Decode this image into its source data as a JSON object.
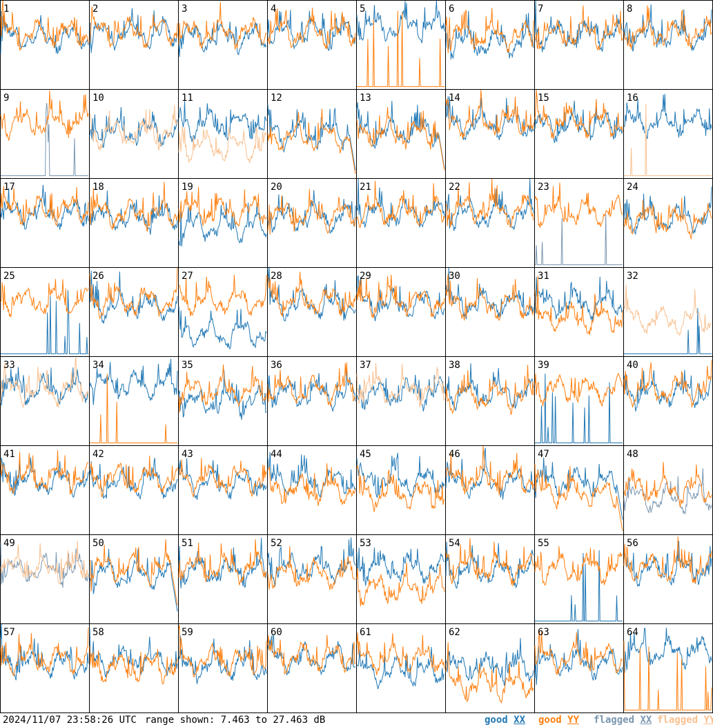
{
  "footer": {
    "timestamp": "2024/11/07 23:58:26 UTC",
    "range_text": "range shown: 7.463 to 27.463 dB"
  },
  "legend": [
    {
      "status": "good",
      "pol": "XX",
      "color": "#1f77b4"
    },
    {
      "status": "good",
      "pol": "YY",
      "color": "#ff7f0e"
    },
    {
      "status": "flagged",
      "pol": "XX",
      "color": "#7a96b0"
    },
    {
      "status": "flagged",
      "pol": "YY",
      "color": "#f9c08f"
    }
  ],
  "chart_data": {
    "type": "line",
    "title": "",
    "xlabel": "",
    "ylabel": "",
    "ylim": [
      7.463,
      27.463
    ],
    "units": "dB",
    "grid_layout": "8x8",
    "panels": [
      {
        "id": "1",
        "xx": "good",
        "yy": "good",
        "xx_level": 0.58,
        "yy_level": 0.62,
        "note": "spiky start"
      },
      {
        "id": "2",
        "xx": "good",
        "yy": "good",
        "xx_level": 0.62,
        "yy_level": 0.64
      },
      {
        "id": "3",
        "xx": "good",
        "yy": "good",
        "xx_level": 0.58,
        "yy_level": 0.63
      },
      {
        "id": "4",
        "xx": "good",
        "yy": "good",
        "xx_level": 0.62,
        "yy_level": 0.63
      },
      {
        "id": "5",
        "xx": "good",
        "yy": "good",
        "xx_level": 0.7,
        "yy_level": 0.02,
        "note": "YY near floor with spikes"
      },
      {
        "id": "6",
        "xx": "good",
        "yy": "good",
        "xx_level": 0.52,
        "yy_level": 0.6
      },
      {
        "id": "7",
        "xx": "good",
        "yy": "good",
        "xx_level": 0.6,
        "yy_level": 0.62
      },
      {
        "id": "8",
        "xx": "good",
        "yy": "good",
        "xx_level": 0.6,
        "yy_level": 0.62
      },
      {
        "id": "9",
        "xx": "flagged",
        "yy": "good",
        "xx_level": 0.02,
        "yy_level": 0.62,
        "note": "XX near floor with spikes"
      },
      {
        "id": "10",
        "xx": "good",
        "yy": "flagged",
        "xx_level": 0.52,
        "yy_level": 0.5
      },
      {
        "id": "11",
        "xx": "good",
        "yy": "flagged",
        "xx_level": 0.6,
        "yy_level": 0.35
      },
      {
        "id": "12",
        "xx": "good",
        "yy": "good",
        "xx_level": 0.5,
        "yy_level": 0.46,
        "note": "smooth middle, drop at end"
      },
      {
        "id": "13",
        "xx": "good",
        "yy": "good",
        "xx_level": 0.52,
        "yy_level": 0.5,
        "note": "smooth middle, drop at end"
      },
      {
        "id": "14",
        "xx": "good",
        "yy": "good",
        "xx_level": 0.6,
        "yy_level": 0.63
      },
      {
        "id": "15",
        "xx": "good",
        "yy": "good",
        "xx_level": 0.58,
        "yy_level": 0.62
      },
      {
        "id": "16",
        "xx": "good",
        "yy": "flagged",
        "xx_level": 0.62,
        "yy_level": 0.02,
        "note": "YY near floor with spikes"
      },
      {
        "id": "17",
        "xx": "good",
        "yy": "good",
        "xx_level": 0.6,
        "yy_level": 0.64
      },
      {
        "id": "18",
        "xx": "good",
        "yy": "good",
        "xx_level": 0.55,
        "yy_level": 0.6
      },
      {
        "id": "19",
        "xx": "good",
        "yy": "good",
        "xx_level": 0.45,
        "yy_level": 0.62
      },
      {
        "id": "20",
        "xx": "good",
        "yy": "good",
        "xx_level": 0.55,
        "yy_level": 0.58
      },
      {
        "id": "21",
        "xx": "good",
        "yy": "good",
        "xx_level": 0.6,
        "yy_level": 0.62
      },
      {
        "id": "22",
        "xx": "good",
        "yy": "good",
        "xx_level": 0.6,
        "yy_level": 0.64
      },
      {
        "id": "23",
        "xx": "flagged",
        "yy": "good",
        "xx_level": 0.04,
        "yy_level": 0.62,
        "note": "XX near floor with spikes"
      },
      {
        "id": "24",
        "xx": "good",
        "yy": "good",
        "xx_level": 0.55,
        "yy_level": 0.52
      },
      {
        "id": "25",
        "xx": "good",
        "yy": "good",
        "xx_level": 0.02,
        "yy_level": 0.62,
        "note": "XX near floor"
      },
      {
        "id": "26",
        "xx": "good",
        "yy": "good",
        "xx_level": 0.56,
        "yy_level": 0.62
      },
      {
        "id": "27",
        "xx": "good",
        "yy": "good",
        "xx_level": 0.25,
        "yy_level": 0.62,
        "note": "XX smooth hump"
      },
      {
        "id": "28",
        "xx": "good",
        "yy": "good",
        "xx_level": 0.58,
        "yy_level": 0.62
      },
      {
        "id": "29",
        "xx": "good",
        "yy": "good",
        "xx_level": 0.58,
        "yy_level": 0.62
      },
      {
        "id": "30",
        "xx": "good",
        "yy": "good",
        "xx_level": 0.58,
        "yy_level": 0.58
      },
      {
        "id": "31",
        "xx": "good",
        "yy": "good",
        "xx_level": 0.58,
        "yy_level": 0.42
      },
      {
        "id": "32",
        "xx": "good",
        "yy": "flagged",
        "xx_level": 0.02,
        "yy_level": 0.4,
        "note": "XX near floor"
      },
      {
        "id": "33",
        "xx": "good",
        "yy": "flagged",
        "xx_level": 0.62,
        "yy_level": 0.62
      },
      {
        "id": "34",
        "xx": "good",
        "yy": "good",
        "xx_level": 0.68,
        "yy_level": 0.02,
        "note": "YY near floor with spikes"
      },
      {
        "id": "35",
        "xx": "good",
        "yy": "good",
        "xx_level": 0.48,
        "yy_level": 0.6
      },
      {
        "id": "36",
        "xx": "good",
        "yy": "good",
        "xx_level": 0.58,
        "yy_level": 0.62
      },
      {
        "id": "37",
        "xx": "good",
        "yy": "flagged",
        "xx_level": 0.58,
        "yy_level": 0.62
      },
      {
        "id": "38",
        "xx": "good",
        "yy": "good",
        "xx_level": 0.58,
        "yy_level": 0.55
      },
      {
        "id": "39",
        "xx": "good",
        "yy": "good",
        "xx_level": 0.02,
        "yy_level": 0.62,
        "note": "XX near floor with spikes"
      },
      {
        "id": "40",
        "xx": "good",
        "yy": "good",
        "xx_level": 0.58,
        "yy_level": 0.62
      },
      {
        "id": "41",
        "xx": "good",
        "yy": "good",
        "xx_level": 0.6,
        "yy_level": 0.64
      },
      {
        "id": "42",
        "xx": "good",
        "yy": "good",
        "xx_level": 0.58,
        "yy_level": 0.62
      },
      {
        "id": "43",
        "xx": "good",
        "yy": "good",
        "xx_level": 0.58,
        "yy_level": 0.62
      },
      {
        "id": "44",
        "xx": "good",
        "yy": "good",
        "xx_level": 0.6,
        "yy_level": 0.5,
        "note": "YY smooth middle"
      },
      {
        "id": "45",
        "xx": "good",
        "yy": "good",
        "xx_level": 0.6,
        "yy_level": 0.45
      },
      {
        "id": "46",
        "xx": "good",
        "yy": "good",
        "xx_level": 0.58,
        "yy_level": 0.62
      },
      {
        "id": "47",
        "xx": "good",
        "yy": "good",
        "xx_level": 0.58,
        "yy_level": 0.45,
        "note": "YY smooth middle, drop at end"
      },
      {
        "id": "48",
        "xx": "flagged",
        "yy": "good",
        "xx_level": 0.4,
        "yy_level": 0.5
      },
      {
        "id": "49",
        "xx": "flagged",
        "yy": "flagged",
        "xx_level": 0.6,
        "yy_level": 0.62
      },
      {
        "id": "50",
        "xx": "good",
        "yy": "good",
        "xx_level": 0.55,
        "yy_level": 0.62,
        "note": "XX smooth, drop at end"
      },
      {
        "id": "51",
        "xx": "good",
        "yy": "good",
        "xx_level": 0.58,
        "yy_level": 0.62
      },
      {
        "id": "52",
        "xx": "good",
        "yy": "good",
        "xx_level": 0.62,
        "yy_level": 0.55
      },
      {
        "id": "53",
        "xx": "good",
        "yy": "good",
        "xx_level": 0.62,
        "yy_level": 0.38,
        "note": "YY smooth dip"
      },
      {
        "id": "54",
        "xx": "good",
        "yy": "good",
        "xx_level": 0.58,
        "yy_level": 0.62
      },
      {
        "id": "55",
        "xx": "good",
        "yy": "good",
        "xx_level": 0.04,
        "yy_level": 0.62,
        "note": "XX near floor with spikes"
      },
      {
        "id": "56",
        "xx": "good",
        "yy": "good",
        "xx_level": 0.6,
        "yy_level": 0.62
      },
      {
        "id": "57",
        "xx": "good",
        "yy": "good",
        "xx_level": 0.55,
        "yy_level": 0.6
      },
      {
        "id": "58",
        "xx": "good",
        "yy": "good",
        "xx_level": 0.58,
        "yy_level": 0.5
      },
      {
        "id": "59",
        "xx": "good",
        "yy": "good",
        "xx_level": 0.52,
        "yy_level": 0.58
      },
      {
        "id": "60",
        "xx": "good",
        "yy": "good",
        "xx_level": 0.6,
        "yy_level": 0.62
      },
      {
        "id": "61",
        "xx": "good",
        "yy": "good",
        "xx_level": 0.45,
        "yy_level": 0.6
      },
      {
        "id": "62",
        "xx": "good",
        "yy": "good",
        "xx_level": 0.5,
        "yy_level": 0.3
      },
      {
        "id": "63",
        "xx": "good",
        "yy": "good",
        "xx_level": 0.55,
        "yy_level": 0.6
      },
      {
        "id": "64",
        "xx": "good",
        "yy": "good",
        "xx_level": 0.68,
        "yy_level": 0.02,
        "note": "YY near floor with spikes"
      }
    ]
  }
}
